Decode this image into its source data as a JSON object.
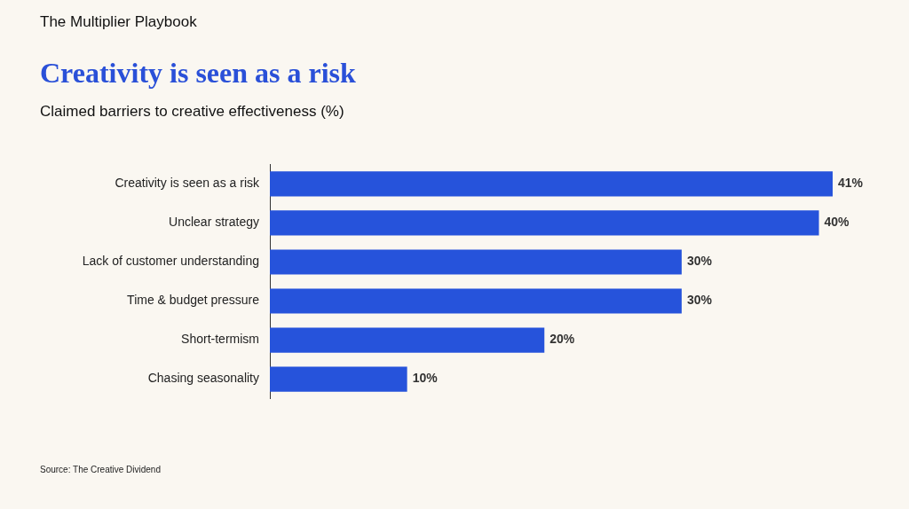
{
  "chart_data": {
    "type": "bar",
    "orientation": "horizontal",
    "title": "Creativity is seen as a risk",
    "subtitle": "Claimed barriers to creative effectiveness (%)",
    "categories": [
      "Creativity is seen as a risk",
      "Unclear strategy",
      "Lack of customer understanding",
      "Time & budget pressure",
      "Short-termism",
      "Chasing seasonality"
    ],
    "values": [
      41,
      40,
      30,
      30,
      20,
      10
    ],
    "value_labels": [
      "41%",
      "40%",
      "30%",
      "30%",
      "20%",
      "10%"
    ],
    "color": "#2653db",
    "tick_labels": "y",
    "grid": false,
    "legend": false,
    "annotations": [
      "The Multiplier Playbook",
      "Source: The Creative Dividend"
    ]
  }
}
